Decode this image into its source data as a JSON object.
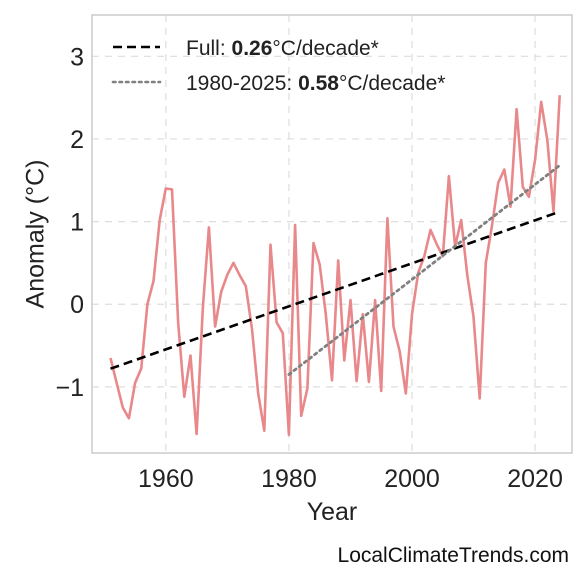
{
  "footer": {
    "source": "LocalClimateTrends.com"
  },
  "legend": {
    "items": [
      {
        "prefix": "Full: ",
        "value": "0.26",
        "suffix": "°C/decade*",
        "style": "dashed",
        "color": "#000000"
      },
      {
        "prefix": "1980-2025: ",
        "value": "0.58",
        "suffix": "°C/decade*",
        "style": "dotted",
        "color": "#808080"
      }
    ],
    "position": "top-left"
  },
  "chart_data": {
    "type": "line",
    "title": "",
    "xlabel": "Year",
    "ylabel": "Anomaly (°C)",
    "xlim": [
      1948,
      2026
    ],
    "ylim": [
      -1.8,
      3.5
    ],
    "xticks": [
      1960,
      1980,
      2000,
      2020
    ],
    "xtick_labels": [
      "1960",
      "1980",
      "2000",
      "2020"
    ],
    "yticks": [
      -1,
      0,
      1,
      2,
      3
    ],
    "ytick_labels": [
      "−1",
      "0",
      "1",
      "2",
      "3"
    ],
    "grid": true,
    "series": [
      {
        "color": "#e8888a",
        "x": [
          1951,
          1952,
          1953,
          1954,
          1955,
          1956,
          1957,
          1958,
          1959,
          1960,
          1961,
          1962,
          1963,
          1964,
          1965,
          1966,
          1967,
          1968,
          1969,
          1970,
          1971,
          1972,
          1973,
          1974,
          1975,
          1976,
          1977,
          1978,
          1979,
          1980,
          1981,
          1982,
          1983,
          1984,
          1985,
          1986,
          1987,
          1988,
          1989,
          1990,
          1991,
          1992,
          1993,
          1994,
          1995,
          1996,
          1997,
          1998,
          1999,
          2000,
          2001,
          2002,
          2003,
          2004,
          2005,
          2006,
          2007,
          2008,
          2009,
          2010,
          2011,
          2012,
          2013,
          2014,
          2015,
          2016,
          2017,
          2018,
          2019,
          2020,
          2021,
          2022,
          2023,
          2024
        ],
        "y": [
          -0.65,
          -0.95,
          -1.25,
          -1.38,
          -0.95,
          -0.78,
          0.0,
          0.28,
          1.02,
          1.4,
          1.39,
          -0.23,
          -1.12,
          -0.62,
          -1.57,
          -0.05,
          0.93,
          -0.27,
          0.15,
          0.36,
          0.5,
          0.35,
          0.22,
          -0.3,
          -1.08,
          -1.53,
          0.72,
          -0.22,
          -0.35,
          -1.58,
          0.96,
          -1.35,
          -1.02,
          0.74,
          0.48,
          -0.12,
          -0.92,
          0.53,
          -0.68,
          0.05,
          -0.93,
          -0.12,
          -0.94,
          0.05,
          -1.05,
          1.04,
          -0.27,
          -0.57,
          -1.08,
          -0.12,
          0.38,
          0.58,
          0.9,
          0.73,
          0.58,
          1.55,
          0.7,
          1.02,
          0.34,
          -0.15,
          -1.14,
          0.5,
          0.95,
          1.47,
          1.63,
          1.18,
          2.36,
          1.42,
          1.3,
          1.75,
          2.45,
          1.98,
          1.12,
          2.53
        ]
      },
      {
        "name": "Full",
        "style": "dashed",
        "color": "#000000",
        "x": [
          1951,
          2024
        ],
        "y": [
          -0.78,
          1.12
        ]
      },
      {
        "name": "1980-2025",
        "style": "dotted",
        "color": "#808080",
        "x": [
          1980,
          2024
        ],
        "y": [
          -0.85,
          1.68
        ]
      }
    ]
  }
}
